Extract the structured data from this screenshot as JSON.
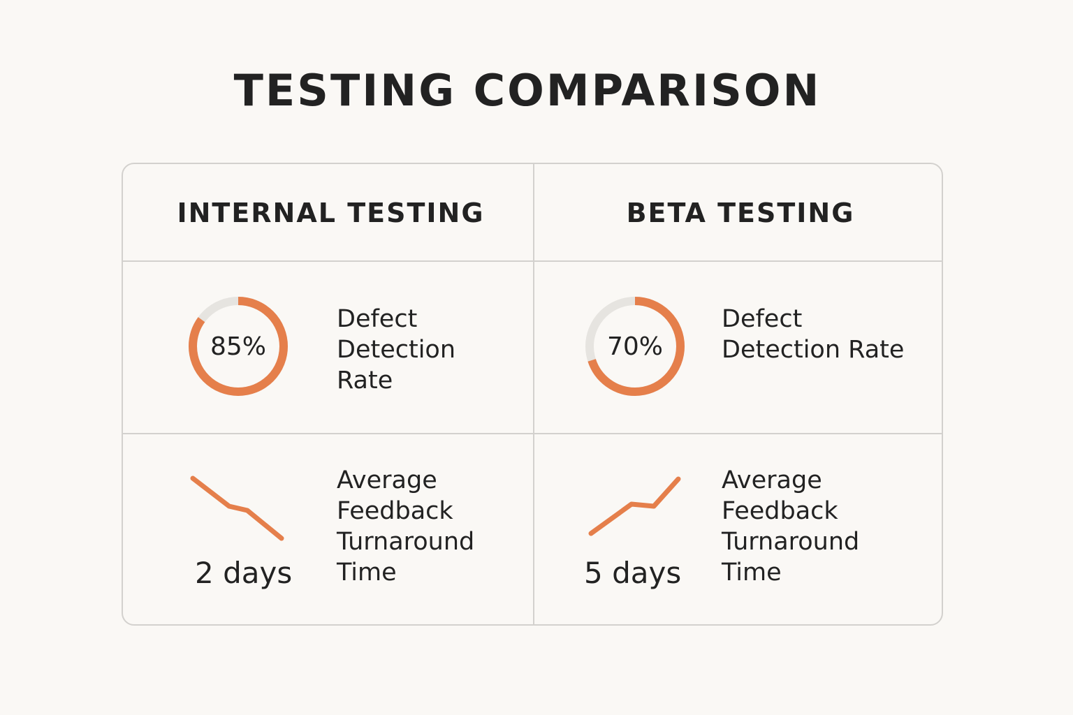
{
  "title": "TESTING COMPARISON",
  "colors": {
    "accent": "#e57f4b",
    "track": "#e6e4e0",
    "border": "#d3d1ce",
    "background": "#faf8f5",
    "text": "#222222"
  },
  "columns": [
    {
      "header": "INTERNAL TESTING",
      "defect": {
        "value_text": "85%",
        "fraction": 0.85,
        "label_lines": [
          "Defect",
          "Detection",
          "Rate"
        ]
      },
      "feedback": {
        "value_text": "2 days",
        "trend": "down",
        "trend_icon": "trend-down-line-icon",
        "label_lines": [
          "Average",
          "Feedback",
          "Turnaround",
          "Time"
        ]
      }
    },
    {
      "header": "BETA TESTING",
      "defect": {
        "value_text": "70%",
        "fraction": 0.7,
        "label_lines": [
          "Defect",
          "Detection Rate"
        ]
      },
      "feedback": {
        "value_text": "5 days",
        "trend": "up",
        "trend_icon": "trend-up-line-icon",
        "label_lines": [
          "Average",
          "Feedback",
          "Turnaround",
          "Time"
        ]
      }
    }
  ]
}
